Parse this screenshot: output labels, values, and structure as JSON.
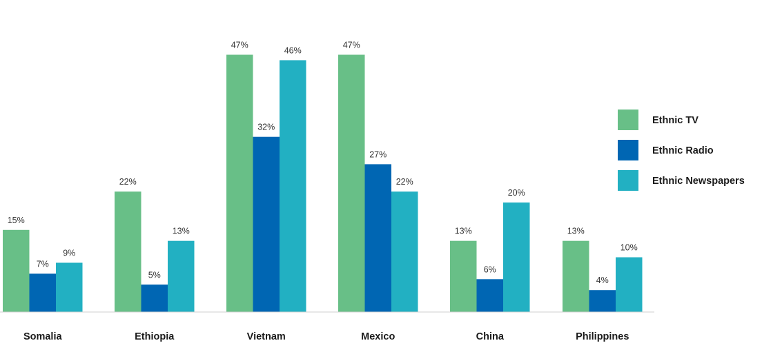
{
  "chart_data": {
    "type": "bar",
    "categories": [
      "Somalia",
      "Ethiopia",
      "Vietnam",
      "Mexico",
      "China",
      "Philippines"
    ],
    "series": [
      {
        "name": "Ethnic TV",
        "color": "#68bf87",
        "values": [
          15,
          22,
          47,
          47,
          13,
          13
        ]
      },
      {
        "name": "Ethnic Radio",
        "color": "#0066b3",
        "values": [
          7,
          5,
          32,
          27,
          6,
          4
        ]
      },
      {
        "name": "Ethnic Newspapers",
        "color": "#22b0c2",
        "values": [
          9,
          13,
          46,
          22,
          20,
          10
        ]
      }
    ],
    "value_suffix": "%",
    "ylim": [
      0,
      57
    ],
    "grid": false,
    "legend_position": "right"
  }
}
